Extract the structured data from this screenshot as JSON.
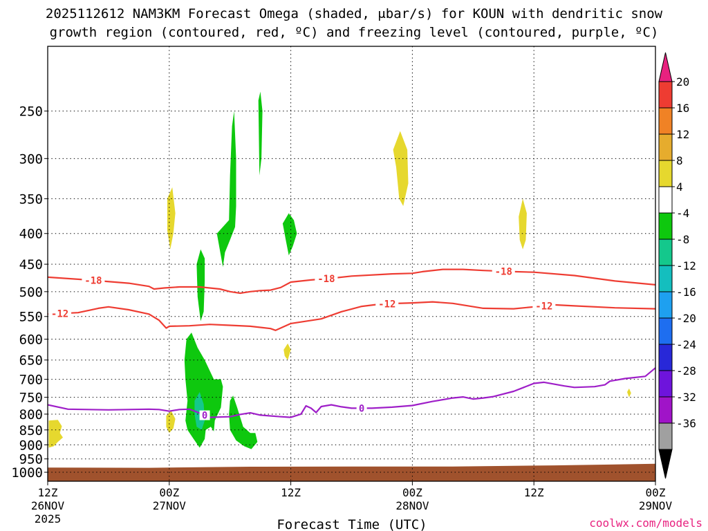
{
  "chart_data": {
    "type": "contour",
    "title_line1": "2025112612 NAM3KM Forecast Omega (shaded, μbar/s) for KOUN with dendritic snow",
    "title_line2": "growth region (contoured, red, ºC) and freezing level (contoured, purple, ºC)",
    "xlabel": "Forecast Time (UTC)",
    "credit": "coolwx.com/models",
    "x_range_hours": [
      0,
      60
    ],
    "y_range_hpa": [
      1035,
      195
    ],
    "y_scale": "log",
    "grid": true,
    "y_ticks": [
      250,
      300,
      350,
      400,
      450,
      500,
      550,
      600,
      650,
      700,
      750,
      800,
      850,
      900,
      950,
      1000
    ],
    "x_ticks": [
      {
        "hour": 0,
        "line1": "12Z",
        "line2": "26NOV",
        "line3": "2025"
      },
      {
        "hour": 12,
        "line1": "00Z",
        "line2": "27NOV",
        "line3": ""
      },
      {
        "hour": 24,
        "line1": "12Z",
        "line2": "",
        "line3": ""
      },
      {
        "hour": 36,
        "line1": "00Z",
        "line2": "28NOV",
        "line3": ""
      },
      {
        "hour": 48,
        "line1": "12Z",
        "line2": "",
        "line3": ""
      },
      {
        "hour": 60,
        "line1": "00Z",
        "line2": "29NOV",
        "line3": ""
      }
    ],
    "colorbar": {
      "labels": [
        "20",
        "16",
        "12",
        "8",
        "4",
        "-4",
        "-8",
        "-12",
        "-16",
        "-20",
        "-24",
        "-28",
        "-32",
        "-36"
      ],
      "colors": [
        "#e8217f",
        "#ee3c32",
        "#f08225",
        "#e6ac2d",
        "#e6d82e",
        "#ffffff",
        "#0ec80e",
        "#14c88c",
        "#14bebe",
        "#1ea0f0",
        "#1e6ef0",
        "#2828d8",
        "#6e14dc",
        "#a014c8",
        "#a0a0a0",
        "#000000"
      ]
    },
    "contours": [
      {
        "label": "-18",
        "color": "#ee3c32",
        "points": [
          [
            0,
            473
          ],
          [
            4,
            478
          ],
          [
            8,
            484
          ],
          [
            10,
            490
          ],
          [
            10.5,
            495
          ],
          [
            11.5,
            493
          ],
          [
            13,
            491
          ],
          [
            15,
            491
          ],
          [
            17,
            495
          ],
          [
            18,
            500
          ],
          [
            19,
            503
          ],
          [
            20,
            500
          ],
          [
            21,
            498
          ],
          [
            22,
            497
          ],
          [
            23,
            492
          ],
          [
            24,
            482
          ],
          [
            26,
            478
          ],
          [
            28,
            475
          ],
          [
            30,
            471
          ],
          [
            34,
            467
          ],
          [
            36,
            466
          ],
          [
            37,
            463
          ],
          [
            39,
            459
          ],
          [
            41,
            459
          ],
          [
            43,
            461
          ],
          [
            46,
            463
          ],
          [
            48,
            464
          ],
          [
            52,
            470
          ],
          [
            56,
            480
          ],
          [
            60,
            487
          ]
        ],
        "label_hours": [
          4.5,
          27.5,
          45
        ]
      },
      {
        "label": "-12",
        "color": "#ee3c32",
        "points": [
          [
            0,
            545
          ],
          [
            3,
            542
          ],
          [
            5,
            533
          ],
          [
            6,
            530
          ],
          [
            8,
            536
          ],
          [
            10,
            545
          ],
          [
            11,
            558
          ],
          [
            11.7,
            575
          ],
          [
            12,
            571
          ],
          [
            14,
            570
          ],
          [
            16,
            567
          ],
          [
            18,
            569
          ],
          [
            20,
            571
          ],
          [
            22,
            576
          ],
          [
            22.5,
            580
          ],
          [
            24,
            565
          ],
          [
            27,
            555
          ],
          [
            29,
            540
          ],
          [
            31,
            529
          ],
          [
            33,
            524
          ],
          [
            36,
            522
          ],
          [
            38,
            520
          ],
          [
            40,
            523
          ],
          [
            43,
            533
          ],
          [
            46,
            534
          ],
          [
            48,
            530
          ],
          [
            50,
            526
          ],
          [
            52,
            528
          ],
          [
            56,
            532
          ],
          [
            60,
            534
          ]
        ],
        "label_hours": [
          1.2,
          33.5,
          49
        ]
      },
      {
        "label": "0",
        "color": "#9e1ec8",
        "points": [
          [
            0,
            772
          ],
          [
            2,
            785
          ],
          [
            4,
            786
          ],
          [
            6,
            787
          ],
          [
            8,
            786
          ],
          [
            10,
            785
          ],
          [
            11,
            786
          ],
          [
            12,
            791
          ],
          [
            13,
            786
          ],
          [
            14,
            785
          ],
          [
            15,
            797
          ],
          [
            16,
            810
          ],
          [
            18,
            808
          ],
          [
            19,
            801
          ],
          [
            20,
            796
          ],
          [
            21,
            803
          ],
          [
            23,
            808
          ],
          [
            24,
            810
          ],
          [
            25,
            800
          ],
          [
            25.5,
            775
          ],
          [
            26,
            782
          ],
          [
            26.5,
            795
          ],
          [
            27,
            777
          ],
          [
            28,
            772
          ],
          [
            29,
            778
          ],
          [
            30,
            782
          ],
          [
            32,
            782
          ],
          [
            34,
            779
          ],
          [
            36,
            774
          ],
          [
            38,
            762
          ],
          [
            40,
            752
          ],
          [
            41,
            749
          ],
          [
            42,
            755
          ],
          [
            43,
            752
          ],
          [
            44,
            748
          ],
          [
            46,
            733
          ],
          [
            47,
            722
          ],
          [
            48,
            711
          ],
          [
            49,
            708
          ],
          [
            51,
            718
          ],
          [
            52,
            722
          ],
          [
            54,
            720
          ],
          [
            55,
            715
          ],
          [
            55.5,
            705
          ],
          [
            57,
            698
          ],
          [
            59,
            692
          ],
          [
            60,
            670
          ]
        ],
        "label_hours": [
          15.5,
          31
        ]
      }
    ],
    "omega_regions": [
      {
        "color": "#e6d82e",
        "points": [
          [
            0.1,
            820
          ],
          [
            1,
            818
          ],
          [
            1.4,
            838
          ],
          [
            1.2,
            860
          ],
          [
            1.5,
            875
          ],
          [
            1,
            890
          ],
          [
            0.6,
            905
          ],
          [
            0.1,
            910
          ]
        ]
      },
      {
        "color": "#e6d82e",
        "points": [
          [
            11.8,
            350
          ],
          [
            12.3,
            335
          ],
          [
            12.6,
            370
          ],
          [
            12.4,
            400
          ],
          [
            12.1,
            425
          ],
          [
            11.8,
            395
          ]
        ]
      },
      {
        "color": "#e6d82e",
        "points": [
          [
            11.7,
            805
          ],
          [
            12.2,
            790
          ],
          [
            12.6,
            815
          ],
          [
            12.4,
            845
          ],
          [
            12.0,
            860
          ],
          [
            11.7,
            840
          ]
        ]
      },
      {
        "color": "#e6d82e",
        "points": [
          [
            23.3,
            625
          ],
          [
            23.7,
            610
          ],
          [
            24.0,
            625
          ],
          [
            23.7,
            650
          ],
          [
            23.4,
            640
          ]
        ]
      },
      {
        "color": "#e6d82e",
        "points": [
          [
            34.1,
            290
          ],
          [
            34.8,
            270
          ],
          [
            35.5,
            290
          ],
          [
            35.6,
            330
          ],
          [
            35.1,
            360
          ],
          [
            34.7,
            350
          ],
          [
            34.4,
            310
          ]
        ]
      },
      {
        "color": "#e6d82e",
        "points": [
          [
            46.5,
            375
          ],
          [
            46.9,
            350
          ],
          [
            47.3,
            370
          ],
          [
            47.2,
            410
          ],
          [
            46.9,
            425
          ],
          [
            46.6,
            410
          ]
        ]
      },
      {
        "color": "#e6d82e",
        "points": [
          [
            57.2,
            735
          ],
          [
            57.4,
            725
          ],
          [
            57.6,
            738
          ],
          [
            57.4,
            750
          ]
        ]
      },
      {
        "color": "#0ec80e",
        "points": [
          [
            16.7,
            400
          ],
          [
            17.9,
            380
          ],
          [
            18,
            320
          ],
          [
            18.2,
            265
          ],
          [
            18.4,
            250
          ],
          [
            18.6,
            300
          ],
          [
            18.6,
            360
          ],
          [
            18.5,
            390
          ],
          [
            18,
            410
          ],
          [
            17.5,
            430
          ],
          [
            17.3,
            455
          ]
        ]
      },
      {
        "color": "#0ec80e",
        "points": [
          [
            20.8,
            240
          ],
          [
            21.0,
            232
          ],
          [
            21.2,
            250
          ],
          [
            21.1,
            300
          ],
          [
            20.9,
            320
          ]
        ]
      },
      {
        "color": "#0ec80e",
        "points": [
          [
            23.2,
            385
          ],
          [
            23.8,
            370
          ],
          [
            24.3,
            380
          ],
          [
            24.6,
            400
          ],
          [
            24.2,
            420
          ],
          [
            23.8,
            435
          ],
          [
            23.5,
            410
          ]
        ]
      },
      {
        "color": "#0ec80e",
        "points": [
          [
            14.7,
            450
          ],
          [
            15.1,
            425
          ],
          [
            15.5,
            440
          ],
          [
            15.5,
            480
          ],
          [
            15.4,
            540
          ],
          [
            15.1,
            560
          ],
          [
            14.8,
            510
          ]
        ]
      },
      {
        "color": "#0ec80e",
        "points": [
          [
            13.7,
            600
          ],
          [
            14.2,
            585
          ],
          [
            14.8,
            620
          ],
          [
            15.5,
            650
          ],
          [
            16.4,
            700
          ],
          [
            17.1,
            700
          ],
          [
            17.3,
            720
          ],
          [
            17.1,
            780
          ],
          [
            16.5,
            820
          ],
          [
            16.4,
            855
          ],
          [
            16.1,
            840
          ],
          [
            15.6,
            850
          ],
          [
            15.5,
            880
          ],
          [
            15.0,
            910
          ],
          [
            14.4,
            880
          ],
          [
            13.8,
            850
          ],
          [
            13.6,
            820
          ],
          [
            13.8,
            760
          ],
          [
            13.6,
            700
          ],
          [
            13.5,
            650
          ]
        ]
      },
      {
        "color": "#0ec80e",
        "points": [
          [
            18.0,
            760
          ],
          [
            18.3,
            745
          ],
          [
            18.7,
            780
          ],
          [
            19.3,
            840
          ],
          [
            20.0,
            860
          ],
          [
            20.5,
            860
          ],
          [
            20.7,
            890
          ],
          [
            20.1,
            915
          ],
          [
            19.4,
            905
          ],
          [
            18.6,
            885
          ],
          [
            18.0,
            850
          ],
          [
            17.9,
            800
          ]
        ]
      },
      {
        "color": "#14c88c",
        "points": [
          [
            14.5,
            760
          ],
          [
            15.0,
            735
          ],
          [
            15.4,
            770
          ],
          [
            15.5,
            820
          ],
          [
            15.2,
            850
          ],
          [
            14.7,
            840
          ],
          [
            14.5,
            800
          ]
        ]
      }
    ],
    "ground": {
      "color": "#a0522d",
      "top_hpa": [
        [
          0,
          982
        ],
        [
          10,
          983
        ],
        [
          20,
          979
        ],
        [
          30,
          978
        ],
        [
          40,
          978
        ],
        [
          50,
          974
        ],
        [
          60,
          968
        ]
      ]
    }
  }
}
